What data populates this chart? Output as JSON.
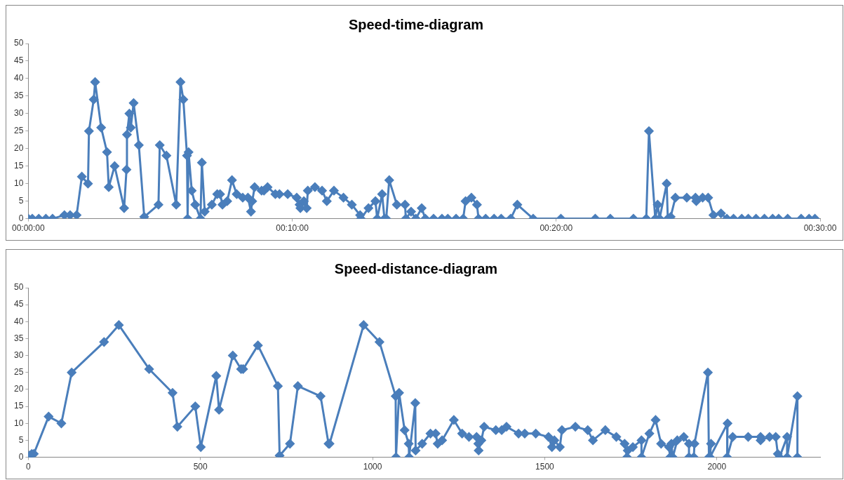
{
  "chart_data": [
    {
      "type": "line",
      "title": "Speed-time-diagram",
      "color": "#4a7ebb",
      "marker": "diamond",
      "grid": false,
      "x": [
        0,
        0.0025,
        0.0066,
        0.0111,
        0.0153,
        0.0228,
        0.0264,
        0.0305,
        0.0338,
        0.0377,
        0.0383,
        0.0413,
        0.0422,
        0.046,
        0.0497,
        0.0508,
        0.0545,
        0.0605,
        0.062,
        0.0623,
        0.0638,
        0.0647,
        0.0665,
        0.0698,
        0.0732,
        0.0822,
        0.083,
        0.0872,
        0.0934,
        0.0961,
        0.0979,
        0.1002,
        0.1006,
        0.1012,
        0.1032,
        0.1054,
        0.1087,
        0.1096,
        0.1114,
        0.1159,
        0.1193,
        0.1211,
        0.1226,
        0.1256,
        0.1286,
        0.1316,
        0.1354,
        0.1387,
        0.1406,
        0.1414,
        0.1429,
        0.1473,
        0.1488,
        0.1511,
        0.156,
        0.1586,
        0.1638,
        0.1695,
        0.1713,
        0.1718,
        0.174,
        0.1758,
        0.1765,
        0.181,
        0.1855,
        0.1885,
        0.193,
        0.199,
        0.2043,
        0.2095,
        0.21,
        0.2148,
        0.2192,
        0.2203,
        0.2234,
        0.2249,
        0.226,
        0.2279,
        0.2327,
        0.2379,
        0.2384,
        0.2417,
        0.2447,
        0.2484,
        0.2507,
        0.2559,
        0.2612,
        0.2649,
        0.2701,
        0.2746,
        0.2761,
        0.2798,
        0.2833,
        0.2843,
        0.2888,
        0.2941,
        0.2986,
        0.3046,
        0.3088,
        0.3188,
        0.3363,
        0.358,
        0.3675,
        0.3821,
        0.3902,
        0.3919,
        0.3959,
        0.3974,
        0.3986,
        0.4031,
        0.4038,
        0.4056,
        0.4086,
        0.4158,
        0.4213,
        0.4218,
        0.4258,
        0.4293,
        0.4326,
        0.4374,
        0.4411,
        0.4453,
        0.4505,
        0.4546,
        0.4595,
        0.4648,
        0.47,
        0.4738,
        0.4795,
        0.488,
        0.493,
        0.4967
      ],
      "values": [
        0,
        0,
        0,
        0,
        0,
        1,
        1,
        1,
        12,
        10,
        25,
        34,
        39,
        26,
        19,
        9,
        15,
        3,
        14,
        24,
        30,
        26,
        33,
        21,
        0.5,
        4,
        21,
        18,
        4,
        39,
        34,
        18,
        0,
        19,
        8,
        4,
        0,
        16,
        2,
        4,
        7,
        7,
        4,
        5,
        11,
        7,
        6,
        6,
        2,
        5,
        9,
        8,
        8,
        9,
        7,
        7,
        7,
        6,
        4,
        3,
        5,
        3,
        8,
        9,
        8,
        5,
        8,
        6,
        4,
        1,
        0,
        3,
        5,
        0,
        7,
        0,
        0,
        11,
        4,
        4,
        0,
        2,
        0,
        3,
        0,
        0,
        0,
        0,
        0,
        0,
        5,
        6,
        4,
        0,
        0,
        0,
        0,
        0,
        4,
        0,
        0,
        0,
        0,
        0,
        0,
        25,
        0,
        4,
        0,
        10,
        0,
        0.5,
        6,
        6,
        6,
        5,
        6,
        6,
        1,
        1.5,
        0,
        0,
        0,
        0,
        0,
        0,
        0,
        0,
        0,
        0,
        0,
        0
      ],
      "xlim": [
        0,
        0.5
      ],
      "xticks": [
        {
          "value": 0,
          "label": "00:00:00"
        },
        {
          "value": 0.166667,
          "label": "00:10:00"
        },
        {
          "value": 0.333333,
          "label": "00:20:00"
        },
        {
          "value": 0.5,
          "label": "00:30:00"
        }
      ],
      "ylim": [
        0,
        50
      ],
      "yticks": [
        0,
        5,
        10,
        15,
        20,
        25,
        30,
        35,
        40,
        45,
        50
      ]
    },
    {
      "type": "line",
      "title": "Speed-distance-diagram",
      "color": "#4a7ebb",
      "marker": "diamond",
      "grid": false,
      "x": [
        0,
        3,
        10,
        16,
        59,
        96,
        126,
        220,
        263,
        351,
        419,
        433,
        485,
        501,
        546,
        554,
        594,
        618,
        624,
        667,
        725,
        730,
        760,
        783,
        849,
        872,
        875,
        974,
        1020,
        1067,
        1068,
        1077,
        1093,
        1105,
        1106,
        1124,
        1125,
        1144,
        1168,
        1183,
        1189,
        1202,
        1236,
        1260,
        1280,
        1302,
        1307,
        1308,
        1316,
        1324,
        1358,
        1375,
        1389,
        1424,
        1442,
        1474,
        1511,
        1521,
        1528,
        1544,
        1550,
        1589,
        1625,
        1640,
        1676,
        1708,
        1732,
        1739,
        1741,
        1756,
        1781,
        1781,
        1804,
        1822,
        1838,
        1861,
        1864,
        1868,
        1872,
        1885,
        1904,
        1919,
        1919,
        1933,
        1935,
        1974,
        1977,
        1983,
        1980,
        2031,
        2030,
        2046,
        2091,
        2127,
        2127,
        2153,
        2171,
        2177,
        2182,
        2204,
        2204,
        2234,
        2234
      ],
      "values": [
        0,
        0.5,
        1,
        1,
        12,
        10,
        25,
        34,
        39,
        26,
        19,
        9,
        15,
        3,
        24,
        14,
        30,
        26,
        26,
        33,
        21,
        0.5,
        4,
        21,
        18,
        4,
        4,
        39,
        34,
        18,
        0,
        19,
        8,
        4,
        0,
        16,
        2,
        4,
        7,
        7,
        4,
        5,
        11,
        7,
        6,
        6,
        4,
        2,
        5,
        9,
        8,
        8,
        9,
        7,
        7,
        7,
        6,
        3,
        5,
        3,
        8,
        9,
        8,
        5,
        8,
        6,
        4,
        0,
        2,
        3,
        5,
        0,
        7,
        11,
        4,
        3,
        0,
        4,
        0,
        5,
        6,
        4,
        0,
        0,
        4,
        25,
        0,
        4,
        0,
        10,
        0,
        6,
        6,
        6,
        5,
        6,
        6,
        1,
        0,
        6,
        0,
        18,
        0
      ],
      "xlim": [
        0,
        2300
      ],
      "xticks": [
        0,
        500,
        1000,
        1500,
        2000
      ],
      "ylim": [
        0,
        50
      ],
      "yticks": [
        0,
        5,
        10,
        15,
        20,
        25,
        30,
        35,
        40,
        45,
        50
      ]
    }
  ]
}
